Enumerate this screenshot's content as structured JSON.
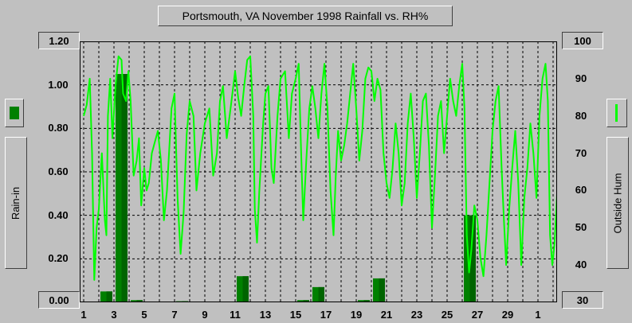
{
  "chart_data": {
    "type": "bar+line",
    "title": "Portsmouth, VA November 1998 Rainfall vs. RH%",
    "left_axis": {
      "label": "Rain-in",
      "ticks": [
        "1.20",
        "1.00",
        "0.80",
        "0.60",
        "0.40",
        "0.20",
        "0.00"
      ],
      "ylim": [
        0,
        1.2
      ]
    },
    "right_axis": {
      "label": "Outside Hum",
      "ticks": [
        "100",
        "90",
        "80",
        "70",
        "60",
        "50",
        "40",
        "30"
      ],
      "ylim": [
        30,
        100
      ]
    },
    "x_ticks": [
      "1",
      "3",
      "5",
      "7",
      "9",
      "11",
      "13",
      "15",
      "17",
      "19",
      "21",
      "23",
      "25",
      "27",
      "29",
      "1"
    ],
    "grid": true,
    "colors": {
      "rain": "#008000",
      "rain_dark": "#006400",
      "humidity": "#00ff00"
    },
    "rain": {
      "name": "Rain-in",
      "days": [
        2,
        3,
        4,
        7,
        11,
        15,
        16,
        19,
        20,
        26
      ],
      "values": [
        0.05,
        1.05,
        0.01,
        0.005,
        0.12,
        0.01,
        0.07,
        0.01,
        0.11,
        0.4
      ]
    },
    "humidity": {
      "name": "Outside Hum",
      "day_values": [
        [
          1.0,
          80
        ],
        [
          1.2,
          83
        ],
        [
          1.4,
          90
        ],
        [
          1.55,
          70
        ],
        [
          1.7,
          36
        ],
        [
          1.85,
          50
        ],
        [
          2.0,
          55
        ],
        [
          2.2,
          70
        ],
        [
          2.4,
          52
        ],
        [
          2.5,
          48
        ],
        [
          2.6,
          80
        ],
        [
          2.75,
          90
        ],
        [
          2.9,
          74
        ],
        [
          3.1,
          88
        ],
        [
          3.3,
          96
        ],
        [
          3.5,
          95
        ],
        [
          3.6,
          86
        ],
        [
          3.8,
          84
        ],
        [
          3.95,
          92
        ],
        [
          4.1,
          84
        ],
        [
          4.3,
          64
        ],
        [
          4.5,
          68
        ],
        [
          4.65,
          74
        ],
        [
          4.8,
          56
        ],
        [
          5.0,
          66
        ],
        [
          5.15,
          60
        ],
        [
          5.3,
          62
        ],
        [
          5.5,
          70
        ],
        [
          5.7,
          73
        ],
        [
          5.9,
          76
        ],
        [
          6.1,
          68
        ],
        [
          6.3,
          52
        ],
        [
          6.5,
          60
        ],
        [
          6.8,
          82
        ],
        [
          7.0,
          86
        ],
        [
          7.2,
          58
        ],
        [
          7.4,
          43
        ],
        [
          7.6,
          54
        ],
        [
          7.8,
          75
        ],
        [
          8.0,
          84
        ],
        [
          8.25,
          80
        ],
        [
          8.45,
          60
        ],
        [
          8.7,
          70
        ],
        [
          9.0,
          78
        ],
        [
          9.3,
          82
        ],
        [
          9.55,
          64
        ],
        [
          9.8,
          70
        ],
        [
          10.0,
          84
        ],
        [
          10.2,
          88
        ],
        [
          10.45,
          74
        ],
        [
          10.7,
          82
        ],
        [
          11.0,
          92
        ],
        [
          11.2,
          85
        ],
        [
          11.4,
          80
        ],
        [
          11.6,
          88
        ],
        [
          11.8,
          95
        ],
        [
          12.0,
          96
        ],
        [
          12.2,
          80
        ],
        [
          12.3,
          55
        ],
        [
          12.45,
          46
        ],
        [
          12.6,
          60
        ],
        [
          12.85,
          78
        ],
        [
          13.0,
          86
        ],
        [
          13.2,
          88
        ],
        [
          13.4,
          66
        ],
        [
          13.55,
          62
        ],
        [
          13.8,
          80
        ],
        [
          14.0,
          90
        ],
        [
          14.3,
          92
        ],
        [
          14.55,
          74
        ],
        [
          14.75,
          86
        ],
        [
          15.0,
          90
        ],
        [
          15.2,
          94
        ],
        [
          15.35,
          72
        ],
        [
          15.5,
          52
        ],
        [
          15.7,
          68
        ],
        [
          15.9,
          82
        ],
        [
          16.1,
          88
        ],
        [
          16.3,
          82
        ],
        [
          16.5,
          74
        ],
        [
          16.7,
          86
        ],
        [
          16.9,
          94
        ],
        [
          17.1,
          82
        ],
        [
          17.3,
          60
        ],
        [
          17.5,
          48
        ],
        [
          17.65,
          64
        ],
        [
          17.8,
          76
        ],
        [
          18.0,
          68
        ],
        [
          18.2,
          72
        ],
        [
          18.4,
          78
        ],
        [
          18.6,
          86
        ],
        [
          18.8,
          94
        ],
        [
          19.0,
          82
        ],
        [
          19.2,
          68
        ],
        [
          19.4,
          76
        ],
        [
          19.6,
          90
        ],
        [
          19.8,
          93
        ],
        [
          20.0,
          92
        ],
        [
          20.2,
          84
        ],
        [
          20.4,
          90
        ],
        [
          20.6,
          87
        ],
        [
          20.8,
          70
        ],
        [
          21.0,
          62
        ],
        [
          21.2,
          58
        ],
        [
          21.4,
          66
        ],
        [
          21.6,
          78
        ],
        [
          21.8,
          70
        ],
        [
          22.0,
          56
        ],
        [
          22.2,
          62
        ],
        [
          22.4,
          78
        ],
        [
          22.6,
          86
        ],
        [
          22.8,
          74
        ],
        [
          23.0,
          58
        ],
        [
          23.2,
          70
        ],
        [
          23.4,
          84
        ],
        [
          23.6,
          86
        ],
        [
          23.8,
          72
        ],
        [
          24.0,
          50
        ],
        [
          24.2,
          64
        ],
        [
          24.4,
          80
        ],
        [
          24.6,
          84
        ],
        [
          24.8,
          70
        ],
        [
          25.0,
          80
        ],
        [
          25.2,
          90
        ],
        [
          25.4,
          84
        ],
        [
          25.6,
          80
        ],
        [
          25.8,
          88
        ],
        [
          26.0,
          94
        ],
        [
          26.15,
          82
        ],
        [
          26.3,
          48
        ],
        [
          26.45,
          38
        ],
        [
          26.6,
          44
        ],
        [
          26.8,
          56
        ],
        [
          27.0,
          52
        ],
        [
          27.2,
          42
        ],
        [
          27.4,
          37
        ],
        [
          27.6,
          48
        ],
        [
          27.8,
          62
        ],
        [
          28.0,
          76
        ],
        [
          28.2,
          84
        ],
        [
          28.4,
          88
        ],
        [
          28.6,
          66
        ],
        [
          28.75,
          52
        ],
        [
          28.9,
          40
        ],
        [
          29.1,
          55
        ],
        [
          29.3,
          66
        ],
        [
          29.5,
          76
        ],
        [
          29.7,
          62
        ],
        [
          29.9,
          40
        ],
        [
          30.1,
          58
        ],
        [
          30.3,
          66
        ],
        [
          30.5,
          78
        ],
        [
          30.7,
          70
        ],
        [
          30.9,
          58
        ],
        [
          31.1,
          80
        ],
        [
          31.3,
          90
        ],
        [
          31.5,
          94
        ],
        [
          31.65,
          84
        ],
        [
          31.8,
          48
        ],
        [
          31.95,
          40
        ],
        [
          32.1,
          46
        ],
        [
          32.3,
          62
        ],
        [
          32.45,
          70
        ]
      ]
    }
  }
}
